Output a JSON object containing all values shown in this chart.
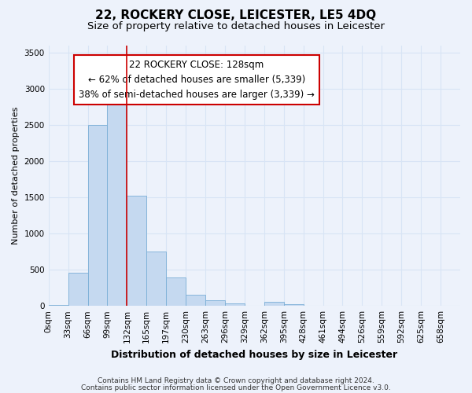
{
  "title1": "22, ROCKERY CLOSE, LEICESTER, LE5 4DQ",
  "title2": "Size of property relative to detached houses in Leicester",
  "xlabel": "Distribution of detached houses by size in Leicester",
  "ylabel": "Number of detached properties",
  "bar_categories": [
    "0sqm",
    "33sqm",
    "66sqm",
    "99sqm",
    "132sqm",
    "165sqm",
    "197sqm",
    "230sqm",
    "263sqm",
    "296sqm",
    "329sqm",
    "362sqm",
    "395sqm",
    "428sqm",
    "461sqm",
    "494sqm",
    "526sqm",
    "559sqm",
    "592sqm",
    "625sqm",
    "658sqm"
  ],
  "bar_values": [
    15,
    460,
    2500,
    2820,
    1520,
    750,
    390,
    155,
    75,
    30,
    0,
    55,
    20,
    0,
    0,
    0,
    0,
    0,
    0,
    0,
    0
  ],
  "bar_color": "#c5d9f0",
  "bar_edge_color": "#7aaed6",
  "vline_x": 4,
  "annotation_line1": "22 ROCKERY CLOSE: 128sqm",
  "annotation_line2": "← 62% of detached houses are smaller (5,339)",
  "annotation_line3": "38% of semi-detached houses are larger (3,339) →",
  "annotation_box_color": "#ffffff",
  "annotation_box_edge_color": "#cc0000",
  "vline_color": "#cc0000",
  "ylim": [
    0,
    3600
  ],
  "yticks": [
    0,
    500,
    1000,
    1500,
    2000,
    2500,
    3000,
    3500
  ],
  "background_color": "#edf2fb",
  "grid_color": "#d8e4f5",
  "footer1": "Contains HM Land Registry data © Crown copyright and database right 2024.",
  "footer2": "Contains public sector information licensed under the Open Government Licence v3.0.",
  "title1_fontsize": 11,
  "title2_fontsize": 9.5,
  "xlabel_fontsize": 9,
  "ylabel_fontsize": 8,
  "tick_fontsize": 7.5,
  "annotation_fontsize": 8.5,
  "footer_fontsize": 6.5
}
